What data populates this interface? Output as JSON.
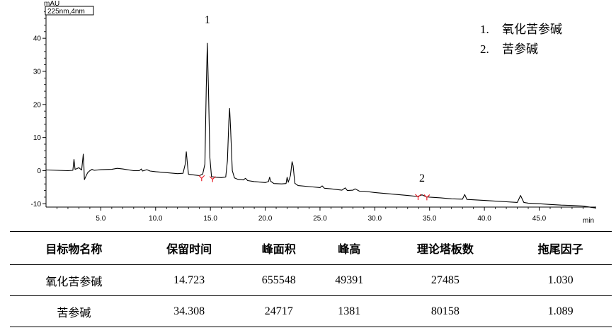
{
  "chart_data": {
    "type": "line",
    "title": "",
    "channel_label": "225nm,4nm",
    "xlabel": "min",
    "ylabel": "mAU",
    "xlim": [
      0,
      50.2
    ],
    "ylim": [
      -11,
      49
    ],
    "x_ticks": [
      5.0,
      10.0,
      15.0,
      20.0,
      25.0,
      30.0,
      35.0,
      40.0,
      45.0
    ],
    "x_tick_labels": [
      "5.0",
      "10.0",
      "15.0",
      "20.0",
      "25.0",
      "30.0",
      "35.0",
      "40.0",
      "45.0"
    ],
    "y_ticks": [
      -10,
      0,
      10,
      20,
      30,
      40
    ],
    "y_tick_labels": [
      "-10",
      "0",
      "10",
      "20",
      "30",
      "40"
    ],
    "grid": false,
    "legend_position": "top-right",
    "legend": [
      {
        "number": "1.",
        "label": "氧化苦参碱"
      },
      {
        "number": "2.",
        "label": "苦参碱"
      }
    ],
    "annotations": [
      {
        "label": "1",
        "x": 14.72,
        "y": 44.5
      },
      {
        "label": "2",
        "x": 34.31,
        "y": -3.3
      }
    ],
    "integration_markers": [
      {
        "x": 14.2,
        "y": -2.3
      },
      {
        "x": 15.2,
        "y": -2.6
      },
      {
        "x": 33.95,
        "y": -8.0
      },
      {
        "x": 34.75,
        "y": -8.1
      }
    ],
    "series": [
      {
        "values": [
          [
            0,
            0.2
          ],
          [
            1.0,
            0.1
          ],
          [
            2.0,
            0.0
          ],
          [
            2.45,
            0.1
          ],
          [
            2.55,
            3.4
          ],
          [
            2.65,
            0.4
          ],
          [
            2.8,
            0.6
          ],
          [
            3.0,
            0.9
          ],
          [
            3.1,
            0.6
          ],
          [
            3.25,
            0.2
          ],
          [
            3.4,
            5.0
          ],
          [
            3.45,
            2.0
          ],
          [
            3.5,
            -2.7
          ],
          [
            3.6,
            -2.0
          ],
          [
            3.8,
            -0.6
          ],
          [
            4.0,
            0.0
          ],
          [
            4.2,
            0.4
          ],
          [
            4.4,
            0.1
          ],
          [
            5.0,
            0.3
          ],
          [
            6.0,
            0.4
          ],
          [
            6.5,
            0.7
          ],
          [
            7.0,
            0.5
          ],
          [
            8.0,
            0.0
          ],
          [
            8.5,
            0.0
          ],
          [
            8.7,
            0.5
          ],
          [
            8.8,
            -0.1
          ],
          [
            9.2,
            0.3
          ],
          [
            9.5,
            -0.1
          ],
          [
            10.0,
            -0.3
          ],
          [
            11.0,
            -0.6
          ],
          [
            12.0,
            -0.9
          ],
          [
            12.5,
            -0.8
          ],
          [
            12.7,
            2.0
          ],
          [
            12.8,
            5.7
          ],
          [
            12.9,
            2.0
          ],
          [
            13.0,
            -1.1
          ],
          [
            13.5,
            -1.3
          ],
          [
            14.0,
            -1.5
          ],
          [
            14.3,
            -1.0
          ],
          [
            14.5,
            2.0
          ],
          [
            14.62,
            25.0
          ],
          [
            14.72,
            38.5
          ],
          [
            14.82,
            25.0
          ],
          [
            14.95,
            4.0
          ],
          [
            15.1,
            -1.8
          ],
          [
            15.5,
            -2.0
          ],
          [
            16.0,
            -2.1
          ],
          [
            16.4,
            -1.9
          ],
          [
            16.55,
            3.0
          ],
          [
            16.68,
            15.0
          ],
          [
            16.75,
            18.8
          ],
          [
            16.85,
            12.0
          ],
          [
            17.0,
            0.0
          ],
          [
            17.2,
            -2.2
          ],
          [
            17.5,
            -2.6
          ],
          [
            18.0,
            -2.8
          ],
          [
            18.2,
            -2.3
          ],
          [
            18.4,
            -3.0
          ],
          [
            19.0,
            -3.3
          ],
          [
            20.0,
            -3.6
          ],
          [
            20.3,
            -3.3
          ],
          [
            20.4,
            -2.0
          ],
          [
            20.5,
            -3.2
          ],
          [
            20.8,
            -3.9
          ],
          [
            21.5,
            -4.0
          ],
          [
            21.9,
            -3.9
          ],
          [
            22.0,
            -2.0
          ],
          [
            22.1,
            -3.5
          ],
          [
            22.3,
            -1.5
          ],
          [
            22.45,
            2.7
          ],
          [
            22.55,
            1.5
          ],
          [
            22.7,
            -3.8
          ],
          [
            23.0,
            -4.5
          ],
          [
            24.0,
            -4.8
          ],
          [
            25.0,
            -5.1
          ],
          [
            25.2,
            -4.6
          ],
          [
            25.4,
            -5.3
          ],
          [
            26.0,
            -5.5
          ],
          [
            27.0,
            -5.9
          ],
          [
            27.3,
            -5.2
          ],
          [
            27.5,
            -6.0
          ],
          [
            28.0,
            -5.9
          ],
          [
            28.2,
            -5.5
          ],
          [
            28.6,
            -6.2
          ],
          [
            29.0,
            -6.2
          ],
          [
            30.0,
            -6.6
          ],
          [
            31.0,
            -6.9
          ],
          [
            32.0,
            -7.2
          ],
          [
            33.0,
            -7.5
          ],
          [
            33.9,
            -7.8
          ],
          [
            34.31,
            -7.3
          ],
          [
            34.7,
            -7.9
          ],
          [
            35.0,
            -8.0
          ],
          [
            36.0,
            -8.2
          ],
          [
            37.0,
            -8.5
          ],
          [
            38.0,
            -8.6
          ],
          [
            38.2,
            -7.2
          ],
          [
            38.4,
            -8.7
          ],
          [
            39.0,
            -8.8
          ],
          [
            40.0,
            -9.0
          ],
          [
            41.0,
            -9.2
          ],
          [
            42.0,
            -9.4
          ],
          [
            43.0,
            -9.6
          ],
          [
            43.3,
            -7.5
          ],
          [
            43.6,
            -9.6
          ],
          [
            44.0,
            -9.8
          ],
          [
            45.0,
            -10.0
          ],
          [
            46.0,
            -10.2
          ],
          [
            47.0,
            -10.4
          ],
          [
            48.0,
            -10.5
          ],
          [
            49.0,
            -10.7
          ],
          [
            50.2,
            -11.3
          ]
        ]
      }
    ]
  },
  "results_table": {
    "headers": [
      "目标物名称",
      "保留时间",
      "峰面积",
      "峰高",
      "理论塔板数",
      "拖尾因子"
    ],
    "rows": [
      [
        "氧化苦参碱",
        "14.723",
        "655548",
        "49391",
        "27485",
        "1.030"
      ],
      [
        "苦参碱",
        "34.308",
        "24717",
        "1381",
        "80158",
        "1.089"
      ]
    ]
  }
}
